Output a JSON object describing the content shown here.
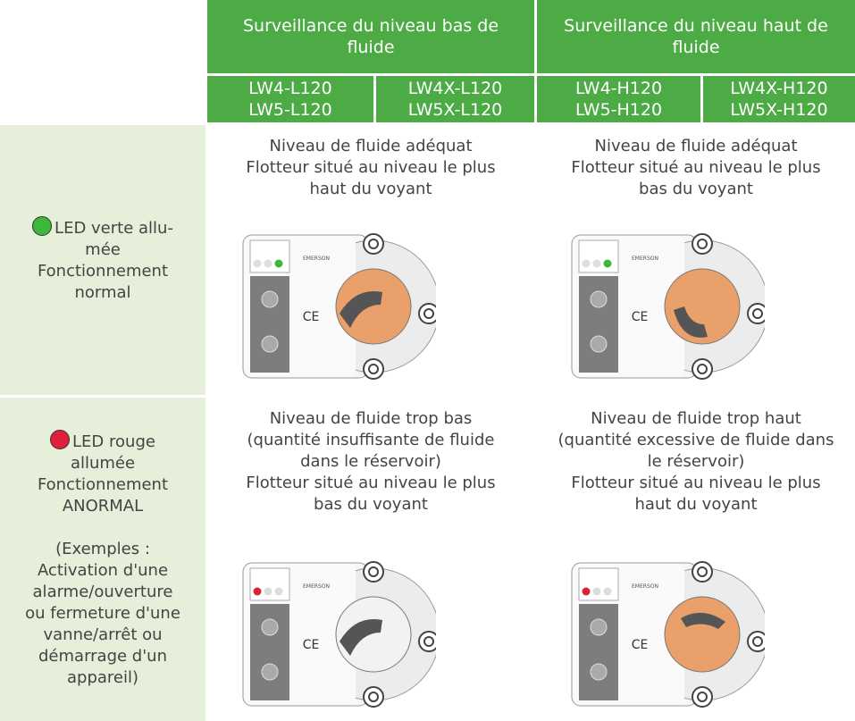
{
  "table": {
    "header_groups": [
      "Surveillance du niveau bas de fluide",
      "Surveillance du niveau haut de fluide"
    ],
    "models": [
      [
        "LW4-L120",
        "LW5-L120"
      ],
      [
        "LW4X-L120",
        "LW5X-L120"
      ],
      [
        "LW4-H120",
        "LW5-H120"
      ],
      [
        "LW4X-H120",
        "LW5X-H120"
      ]
    ],
    "rows": [
      {
        "status": [
          "LED verte allu-",
          "mée",
          "Fonctionnement",
          "normal"
        ],
        "cells": [
          [
            "Niveau de fluide adéquat",
            "Flotteur situé au niveau le plus",
            "haut du voyant"
          ],
          [
            "Niveau de fluide adéquat",
            "Flotteur situé au niveau le plus",
            "bas du voyant"
          ]
        ]
      },
      {
        "status": [
          "LED rouge",
          "allumée",
          "Fonctionnement",
          "ANORMAL",
          "",
          "(Exemples :",
          "Activation d'une",
          "alarme/ouverture",
          "ou fermeture d'une",
          "vanne/arrêt ou",
          "démarrage d'un",
          "appareil)"
        ],
        "cells": [
          [
            "Niveau de fluide trop bas",
            "(quantité insuffisante de fluide",
            "dans le réservoir)",
            "Flotteur situé au niveau le plus",
            "bas du voyant"
          ],
          [
            "Niveau de fluide trop haut",
            "(quantité excessive de fluide dans",
            "le réservoir)",
            "Flotteur situé au niveau le plus",
            "haut du voyant"
          ]
        ]
      }
    ],
    "device": {
      "brand": "EMERSON",
      "mark": "CE"
    }
  }
}
